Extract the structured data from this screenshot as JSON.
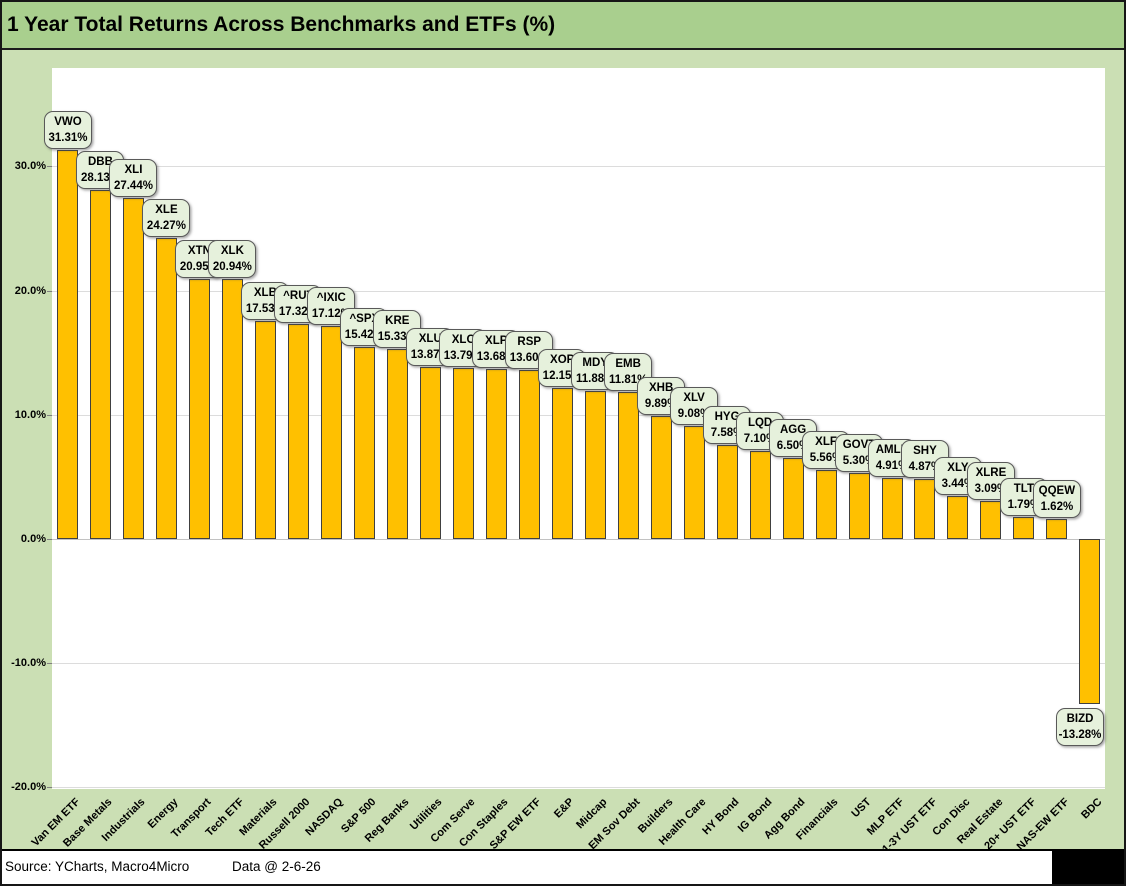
{
  "title": "1 Year Total Returns Across Benchmarks and ETFs (%)",
  "footer": {
    "source": "Source: YCharts, Macro4Micro",
    "data_date": "Data @ 2-6-26"
  },
  "colors": {
    "title_bar_bg": "#a9cf8e",
    "chart_bg": "#cbdfb4",
    "plot_bg": "#ffffff",
    "bar_fill": "#ffc000",
    "bar_border": "#404040",
    "callout_bg": "#e6f1dc",
    "callout_border": "#595959",
    "gridline": "#dcdcdc",
    "zero_line": "#c2c2c2"
  },
  "chart_data": {
    "type": "bar",
    "title": "1 Year Total Returns Across Benchmarks and ETFs (%)",
    "xlabel": "",
    "ylabel": "",
    "ylim": [
      -20,
      37.9
    ],
    "grid": true,
    "legend": false,
    "yticks": [
      30,
      20,
      10,
      0,
      -10,
      -20
    ],
    "ytick_labels": [
      "30.0%",
      "20.0%",
      "10.0%",
      "0.0%",
      "-10.0%",
      "-20.0%"
    ],
    "categories": [
      "Van EM ETF",
      "Base Metals",
      "Industrials",
      "Energy",
      "Transport",
      "Tech ETF",
      "Materials",
      "Russell 2000",
      "NASDAQ",
      "S&P 500",
      "Reg Banks",
      "Utilities",
      "Com Serve",
      "Con Staples",
      "S&P EW ETF",
      "E&P",
      "Midcap",
      "EM Sov Debt",
      "Builders",
      "Health Care",
      "HY Bond",
      "IG Bond",
      "Agg Bond",
      "Financials",
      "UST",
      "MLP ETF",
      "1-3Y UST ETF",
      "Con Disc",
      "Real Estate",
      "20+ UST ETF",
      "NAS-EW ETF",
      "BDC"
    ],
    "tickers": [
      "VWO",
      "DBB",
      "XLI",
      "XLE",
      "XTN",
      "XLK",
      "XLB",
      "^RUT",
      "^IXIC",
      "^SPX",
      "KRE",
      "XLU",
      "XLC",
      "XLP",
      "RSP",
      "XOP",
      "MDY",
      "EMB",
      "XHB",
      "XLV",
      "HYG",
      "LQD",
      "AGG",
      "XLF",
      "GOVT",
      "AMLP",
      "SHY",
      "XLY",
      "XLRE",
      "TLT",
      "QQEW",
      "BIZD"
    ],
    "values": [
      31.31,
      28.13,
      27.44,
      24.27,
      20.95,
      20.94,
      17.53,
      17.32,
      17.12,
      15.42,
      15.33,
      13.87,
      13.79,
      13.68,
      13.6,
      12.15,
      11.88,
      11.81,
      9.89,
      9.08,
      7.58,
      7.1,
      6.5,
      5.56,
      5.3,
      4.91,
      4.87,
      3.44,
      3.09,
      1.79,
      1.62,
      -13.28
    ],
    "value_labels": [
      "31.31%",
      "28.13%",
      "27.44%",
      "24.27%",
      "20.95%",
      "20.94%",
      "17.53%",
      "17.32%",
      "17.12%",
      "15.42%",
      "15.33%",
      "13.87%",
      "13.79%",
      "13.68%",
      "13.60%",
      "12.15%",
      "11.88%",
      "11.81%",
      "9.89%",
      "9.08%",
      "7.58%",
      "7.10%",
      "6.50%",
      "5.56%",
      "5.30%",
      "4.91%",
      "4.87%",
      "3.44%",
      "3.09%",
      "1.79%",
      "1.62%",
      "-13.28%"
    ]
  }
}
